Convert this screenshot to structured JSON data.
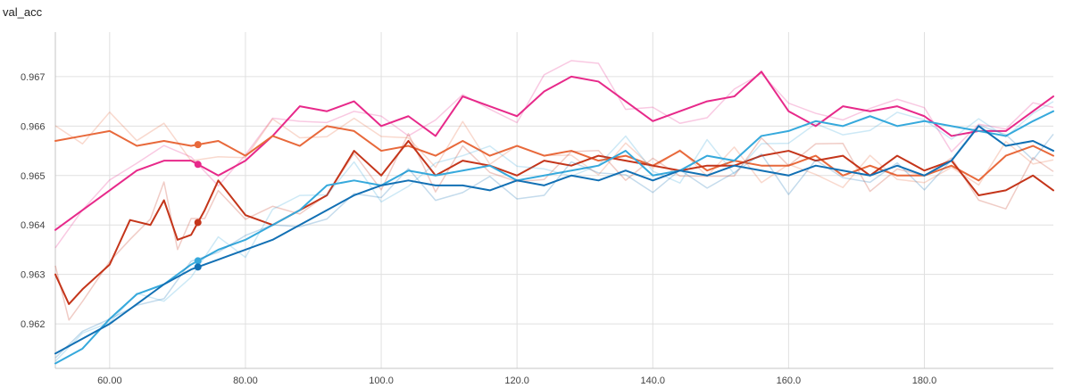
{
  "chart_data": {
    "type": "line",
    "title": "val_acc",
    "xlabel": "",
    "ylabel": "",
    "xlim": [
      52,
      199
    ],
    "ylim": [
      0.9611,
      0.9679
    ],
    "x_ticks": [
      60,
      80,
      100,
      120,
      140,
      160,
      180
    ],
    "x_tick_labels": [
      "60.00",
      "80.00",
      "100.0",
      "120.0",
      "140.0",
      "160.0",
      "180.0"
    ],
    "y_ticks": [
      0.962,
      0.963,
      0.964,
      0.965,
      0.966,
      0.967
    ],
    "y_tick_labels": [
      "0.962",
      "0.963",
      "0.964",
      "0.965",
      "0.966",
      "0.967"
    ],
    "grid": true,
    "legend": "none",
    "hover_x": 73,
    "series": [
      {
        "color": "#e7298a",
        "x": [
          52,
          56,
          60,
          64,
          68,
          72,
          76,
          80,
          84,
          88,
          92,
          96,
          100,
          104,
          108,
          112,
          116,
          120,
          124,
          128,
          132,
          136,
          140,
          144,
          148,
          152,
          156,
          160,
          164,
          168,
          172,
          176,
          180,
          184,
          188,
          192,
          196,
          199
        ],
        "values": [
          0.9639,
          0.9643,
          0.9647,
          0.9651,
          0.9653,
          0.9653,
          0.965,
          0.9653,
          0.9658,
          0.9664,
          0.9663,
          0.9665,
          0.966,
          0.9662,
          0.9658,
          0.9666,
          0.9664,
          0.9662,
          0.9667,
          0.967,
          0.9669,
          0.9665,
          0.9661,
          0.9663,
          0.9665,
          0.9666,
          0.9671,
          0.9663,
          0.966,
          0.9664,
          0.9663,
          0.9664,
          0.9662,
          0.9658,
          0.9659,
          0.9659,
          0.9663,
          0.9666
        ]
      },
      {
        "color": "#e8693b",
        "x": [
          52,
          56,
          60,
          64,
          68,
          72,
          76,
          80,
          84,
          88,
          92,
          96,
          100,
          104,
          108,
          112,
          116,
          120,
          124,
          128,
          132,
          136,
          140,
          144,
          148,
          152,
          156,
          160,
          164,
          168,
          172,
          176,
          180,
          184,
          188,
          192,
          196,
          199
        ],
        "values": [
          0.9657,
          0.9658,
          0.9659,
          0.9656,
          0.9657,
          0.9656,
          0.9657,
          0.9654,
          0.9658,
          0.9656,
          0.966,
          0.9659,
          0.9655,
          0.9656,
          0.9654,
          0.9657,
          0.9654,
          0.9656,
          0.9654,
          0.9655,
          0.9653,
          0.9654,
          0.9652,
          0.9655,
          0.9651,
          0.9653,
          0.9652,
          0.9652,
          0.9654,
          0.965,
          0.9652,
          0.965,
          0.965,
          0.9652,
          0.9649,
          0.9654,
          0.9656,
          0.9654
        ]
      },
      {
        "color": "#c4351a",
        "x": [
          52,
          54,
          56,
          60,
          63,
          66,
          68,
          70,
          72,
          74,
          76,
          80,
          84,
          88,
          92,
          96,
          100,
          104,
          108,
          112,
          116,
          120,
          124,
          128,
          132,
          136,
          140,
          144,
          148,
          152,
          156,
          160,
          164,
          168,
          172,
          176,
          180,
          184,
          188,
          192,
          196,
          199
        ],
        "values": [
          0.963,
          0.9624,
          0.9627,
          0.9632,
          0.9641,
          0.964,
          0.9645,
          0.9637,
          0.9638,
          0.9643,
          0.9649,
          0.9642,
          0.964,
          0.9643,
          0.9646,
          0.9655,
          0.965,
          0.9657,
          0.965,
          0.9653,
          0.9652,
          0.965,
          0.9653,
          0.9652,
          0.9654,
          0.9653,
          0.9652,
          0.9651,
          0.9652,
          0.9652,
          0.9654,
          0.9655,
          0.9653,
          0.9654,
          0.965,
          0.9654,
          0.9651,
          0.9653,
          0.9646,
          0.9647,
          0.965,
          0.9647
        ]
      },
      {
        "color": "#36a9dc",
        "x": [
          52,
          56,
          60,
          64,
          68,
          72,
          76,
          80,
          84,
          88,
          92,
          96,
          100,
          104,
          108,
          112,
          116,
          120,
          124,
          128,
          132,
          136,
          140,
          144,
          148,
          152,
          156,
          160,
          164,
          168,
          172,
          176,
          180,
          184,
          188,
          192,
          196,
          199
        ],
        "values": [
          0.9612,
          0.9615,
          0.9621,
          0.9626,
          0.9628,
          0.9632,
          0.9635,
          0.9637,
          0.964,
          0.9643,
          0.9648,
          0.9649,
          0.9648,
          0.9651,
          0.965,
          0.9651,
          0.9652,
          0.9649,
          0.965,
          0.9651,
          0.9652,
          0.9655,
          0.965,
          0.9651,
          0.9654,
          0.9653,
          0.9658,
          0.9659,
          0.9661,
          0.966,
          0.9662,
          0.966,
          0.9661,
          0.966,
          0.9659,
          0.9658,
          0.9661,
          0.9663
        ]
      },
      {
        "color": "#1270b4",
        "x": [
          52,
          56,
          60,
          64,
          68,
          72,
          76,
          80,
          84,
          88,
          92,
          96,
          100,
          104,
          108,
          112,
          116,
          120,
          124,
          128,
          132,
          136,
          140,
          144,
          148,
          152,
          156,
          160,
          164,
          168,
          172,
          176,
          180,
          184,
          188,
          192,
          196,
          199
        ],
        "values": [
          0.9614,
          0.9617,
          0.962,
          0.9624,
          0.9628,
          0.9631,
          0.9633,
          0.9635,
          0.9637,
          0.964,
          0.9643,
          0.9646,
          0.9648,
          0.9649,
          0.9648,
          0.9648,
          0.9647,
          0.9649,
          0.9648,
          0.965,
          0.9649,
          0.9651,
          0.9649,
          0.9651,
          0.965,
          0.9652,
          0.9651,
          0.965,
          0.9652,
          0.9651,
          0.965,
          0.9652,
          0.965,
          0.9653,
          0.966,
          0.9656,
          0.9657,
          0.9655
        ]
      }
    ]
  }
}
